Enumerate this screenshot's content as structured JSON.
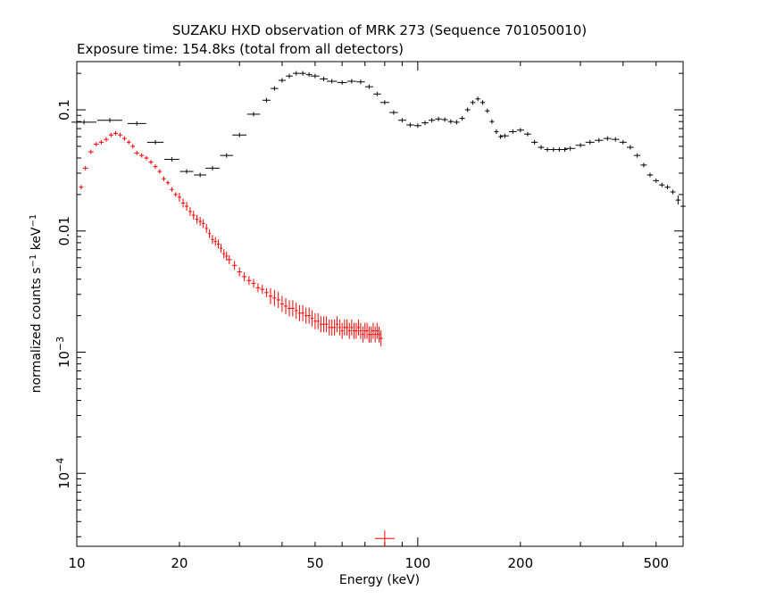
{
  "chart_data": {
    "type": "scatter",
    "title": "SUZAKU HXD observation of MRK 273 (Sequence 701050010)",
    "subtitle": "Exposure time: 154.8ks (total from all detectors)",
    "xlabel": "Energy (keV)",
    "ylabel_main": "normalized counts s",
    "ylabel_sup1": "−1",
    "ylabel_mid": " keV",
    "ylabel_sup2": "−1",
    "x_scale": "log",
    "y_scale": "log",
    "xlim": [
      10,
      600
    ],
    "ylim": [
      2.5e-05,
      0.25
    ],
    "grid": false,
    "x_tick_labels": [
      "10",
      "20",
      "50",
      "100",
      "200",
      "500"
    ],
    "x_tick_values": [
      10,
      20,
      50,
      100,
      200,
      500
    ],
    "y_tick_labels": [
      {
        "base": "0.1",
        "exp": ""
      },
      {
        "base": "0.01",
        "exp": ""
      },
      {
        "base": "10",
        "exp": "−3"
      },
      {
        "base": "10",
        "exp": "−4"
      }
    ],
    "y_tick_values": [
      0.1,
      0.01,
      0.001,
      0.0001
    ],
    "series": [
      {
        "color": "#000000",
        "x": [
          10.5,
          12.5,
          15.0,
          17.0,
          19.0,
          21.0,
          23.0,
          25.0,
          27.5,
          30.0,
          33.0,
          36.0,
          38.0,
          40.0,
          42.0,
          44.0,
          46.0,
          48.0,
          50.0,
          53.0,
          56.0,
          60.0,
          64.0,
          68.0,
          72.0,
          76.0,
          80.0,
          85.0,
          90.0,
          95.0,
          100.0,
          105.0,
          110.0,
          115.0,
          120.0,
          125.0,
          130.0,
          135.0,
          140.0,
          145.0,
          150.0,
          155.0,
          160.0,
          165.0,
          170.0,
          175.0,
          180.0,
          190.0,
          200.0,
          210.0,
          220.0,
          230.0,
          240.0,
          250.0,
          260.0,
          270.0,
          280.0,
          300.0,
          320.0,
          340.0,
          360.0,
          380.0,
          400.0,
          420.0,
          440.0,
          460.0,
          480.0,
          500.0,
          520.0,
          540.0,
          560.0,
          580.0,
          600.0
        ],
        "y": [
          0.079,
          0.082,
          0.077,
          0.054,
          0.039,
          0.031,
          0.029,
          0.033,
          0.042,
          0.062,
          0.092,
          0.12,
          0.15,
          0.175,
          0.19,
          0.2,
          0.2,
          0.195,
          0.19,
          0.18,
          0.172,
          0.168,
          0.172,
          0.17,
          0.155,
          0.135,
          0.115,
          0.095,
          0.082,
          0.075,
          0.074,
          0.078,
          0.082,
          0.084,
          0.083,
          0.08,
          0.079,
          0.085,
          0.1,
          0.115,
          0.123,
          0.115,
          0.098,
          0.08,
          0.066,
          0.06,
          0.061,
          0.066,
          0.068,
          0.063,
          0.054,
          0.049,
          0.047,
          0.047,
          0.047,
          0.047,
          0.048,
          0.051,
          0.054,
          0.056,
          0.058,
          0.057,
          0.054,
          0.049,
          0.042,
          0.035,
          0.029,
          0.026,
          0.024,
          0.023,
          0.021,
          0.018,
          0.016
        ]
      },
      {
        "color": "#ff0000",
        "x": [
          10.3,
          10.6,
          11.0,
          11.4,
          11.8,
          12.2,
          12.6,
          13.0,
          13.4,
          13.8,
          14.2,
          14.6,
          15.0,
          15.5,
          16.0,
          16.5,
          17.0,
          17.5,
          18.0,
          18.5,
          19.0,
          19.5,
          20.0,
          20.5,
          21.0,
          21.5,
          22.0,
          22.5,
          23.0,
          23.5,
          24.0,
          24.5,
          25.0,
          25.5,
          26.0,
          26.5,
          27.0,
          27.5,
          28.0,
          29.0,
          30.0,
          31.0,
          32.0,
          33.0,
          34.0,
          35.0,
          36.0,
          37.0,
          38.0,
          39.0,
          40.0,
          41.0,
          42.0,
          43.0,
          44.0,
          45.0,
          46.0,
          47.0,
          48.0,
          49.0,
          50.0,
          51.0,
          52.0,
          53.0,
          54.0,
          55.0,
          56.0,
          57.0,
          58.0,
          59.0,
          60.0,
          61.0,
          62.0,
          63.0,
          64.0,
          65.0,
          66.0,
          67.0,
          68.0,
          69.0,
          70.0,
          71.0,
          72.0,
          73.0,
          74.0,
          75.0,
          76.0,
          77.0,
          78.0,
          80.0
        ],
        "y": [
          0.023,
          0.033,
          0.045,
          0.052,
          0.054,
          0.057,
          0.062,
          0.064,
          0.062,
          0.058,
          0.054,
          0.05,
          0.044,
          0.042,
          0.04,
          0.037,
          0.034,
          0.031,
          0.027,
          0.025,
          0.022,
          0.02,
          0.019,
          0.017,
          0.016,
          0.0145,
          0.0135,
          0.0125,
          0.012,
          0.0115,
          0.0105,
          0.0095,
          0.0085,
          0.0082,
          0.0078,
          0.0072,
          0.0065,
          0.0062,
          0.0058,
          0.0052,
          0.0046,
          0.0042,
          0.0039,
          0.0037,
          0.0034,
          0.0033,
          0.0031,
          0.0029,
          0.0028,
          0.0027,
          0.0025,
          0.0024,
          0.0023,
          0.0023,
          0.0022,
          0.0021,
          0.0021,
          0.002,
          0.002,
          0.0019,
          0.0018,
          0.0018,
          0.0017,
          0.0017,
          0.0017,
          0.0016,
          0.0016,
          0.0016,
          0.0017,
          0.0016,
          0.0015,
          0.0016,
          0.0016,
          0.0015,
          0.0016,
          0.0015,
          0.0015,
          0.0016,
          0.0015,
          0.0014,
          0.0015,
          0.0015,
          0.0014,
          0.0014,
          0.0015,
          0.0014,
          0.0015,
          0.0014,
          0.0013,
          2.9e-05
        ]
      }
    ]
  }
}
